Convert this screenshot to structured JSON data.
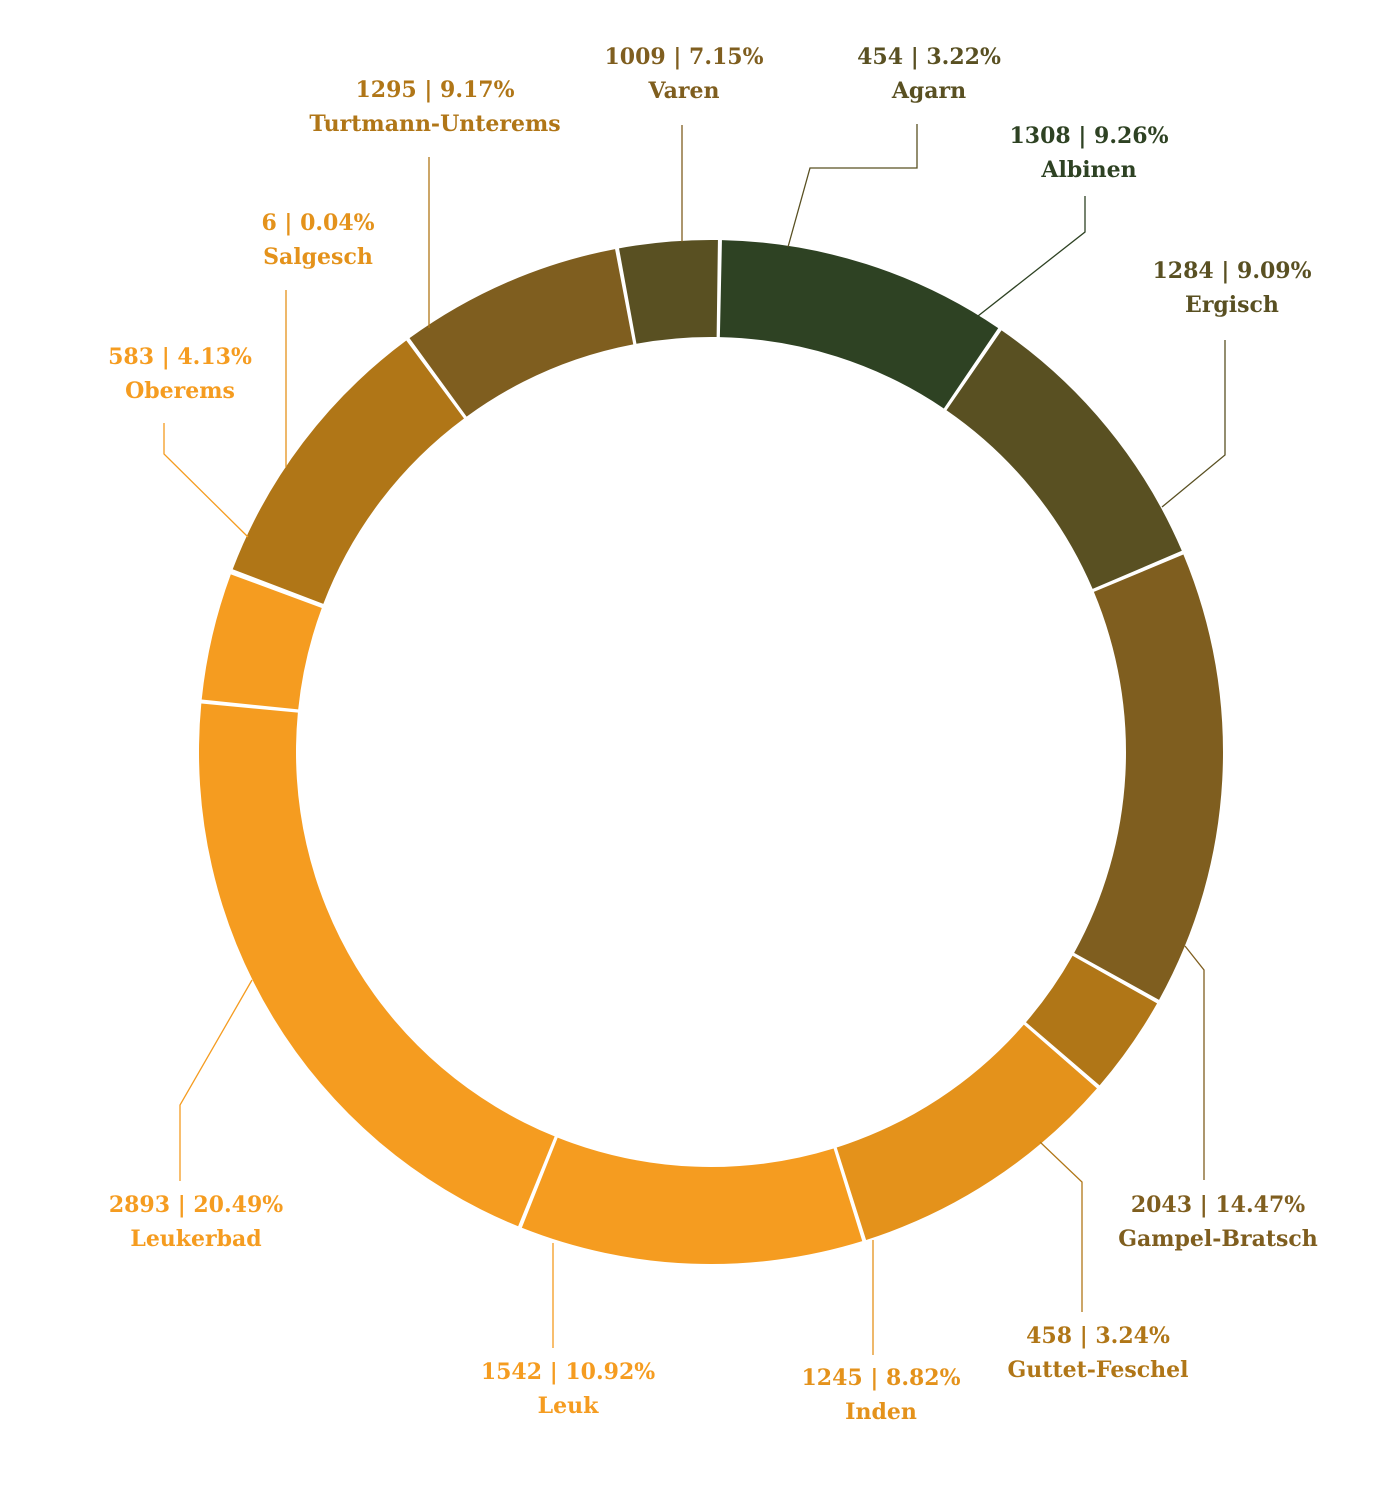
{
  "chart_data": {
    "type": "pie",
    "variant": "donut",
    "title": "",
    "separator": "|",
    "segments": [
      {
        "name": "Albinen",
        "value": 1308,
        "percent": "9.26%",
        "value_label": "1308",
        "color": "#2e4223"
      },
      {
        "name": "Ergisch",
        "value": 1284,
        "percent": "9.09%",
        "value_label": "1284",
        "color": "#595022"
      },
      {
        "name": "Gampel-Bratsch",
        "value": 2043,
        "percent": "14.47%",
        "value_label": "2043",
        "color": "#7f5e1f"
      },
      {
        "name": "Guttet-Feschel",
        "value": 458,
        "percent": "3.24%",
        "value_label": "458",
        "color": "#b07617"
      },
      {
        "name": "Inden",
        "value": 1245,
        "percent": "8.82%",
        "value_label": "1245",
        "color": "#e4921b"
      },
      {
        "name": "Leuk",
        "value": 1542,
        "percent": "10.92%",
        "value_label": "1542",
        "color": "#f59c20"
      },
      {
        "name": "Leukerbad",
        "value": 2893,
        "percent": "20.49%",
        "value_label": "2893",
        "color": "#f59c20"
      },
      {
        "name": "Oberems",
        "value": 583,
        "percent": "4.13%",
        "value_label": "583",
        "color": "#f59c20"
      },
      {
        "name": "Salgesch",
        "value": 6,
        "percent": "0.04%",
        "value_label": "6",
        "color": "#e4921b"
      },
      {
        "name": "Turtmann-Unterems",
        "value": 1295,
        "percent": "9.17%",
        "value_label": "1295",
        "color": "#b07617"
      },
      {
        "name": "Varen",
        "value": 1009,
        "percent": "7.15%",
        "value_label": "1009",
        "color": "#7f5e1f"
      },
      {
        "name": "Agarn",
        "value": 454,
        "percent": "3.22%",
        "value_label": "454",
        "color": "#595022"
      }
    ],
    "legend": "none",
    "grid": false
  }
}
